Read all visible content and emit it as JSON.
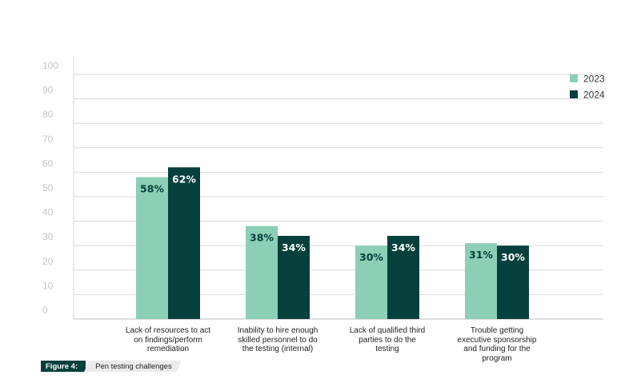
{
  "chart_data": {
    "type": "bar",
    "categories": [
      "Lack of resources to act on findings/perform remediation",
      "Inability to hire enough skilled personnel to do the testing (internal)",
      "Lack of qualified third parties to do the testing",
      "Trouble getting executive sponsorship and funding for the program"
    ],
    "category_lines": [
      [
        "Lack of resources to act",
        "on findings/perform",
        "remediation"
      ],
      [
        "Inability to hire enough",
        "skilled personnel to do",
        "the testing (internal)"
      ],
      [
        "Lack of qualified third",
        "parties to do the",
        "testing"
      ],
      [
        "Trouble getting",
        "executive sponsorship",
        "and funding for the",
        "program"
      ]
    ],
    "series": [
      {
        "name": "2023",
        "values": [
          58,
          38,
          30,
          31
        ],
        "labels": [
          "58%",
          "38%",
          "30%",
          "31%"
        ],
        "color": "#8ccfb6",
        "label_color": "#06403c"
      },
      {
        "name": "2024",
        "values": [
          62,
          34,
          34,
          30
        ],
        "labels": [
          "62%",
          "34%",
          "34%",
          "30%"
        ],
        "color": "#06403c",
        "label_color": "#ffffff"
      }
    ],
    "yticks": [
      0,
      10,
      20,
      30,
      40,
      50,
      60,
      70,
      80,
      90,
      100
    ],
    "ylim": [
      0,
      100
    ],
    "grid": true,
    "legend": "top-right",
    "title": "",
    "xlabel": "",
    "ylabel": ""
  },
  "caption": {
    "label": "Figure 4:",
    "title": "Pen testing challenges"
  }
}
